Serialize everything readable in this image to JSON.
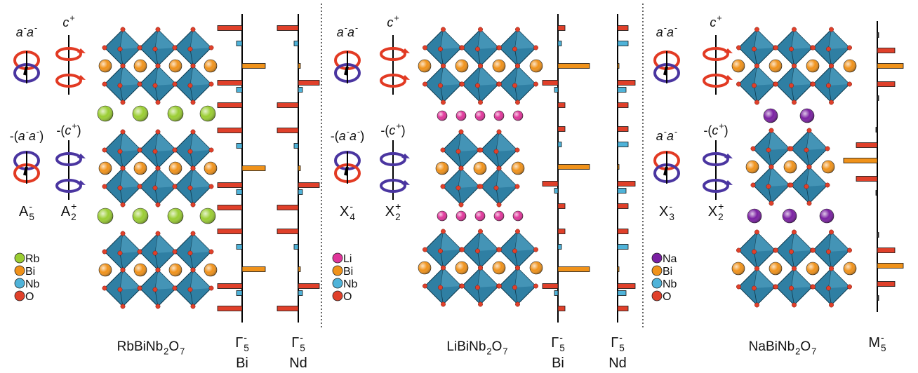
{
  "panels": [
    {
      "rotation_labels": [
        [
          {
            "t": "a",
            "sup": "-",
            "italic": true
          },
          {
            "t": "a",
            "sup": "-",
            "italic": true
          }
        ],
        [
          {
            "t": "c",
            "sup": "+",
            "italic": true
          }
        ],
        [
          {
            "t": "-("
          },
          {
            "t": "a",
            "sup": "-",
            "italic": true
          },
          {
            "t": "a",
            "sup": "-",
            "italic": true
          },
          {
            "t": ")"
          }
        ],
        [
          {
            "t": "-("
          },
          {
            "t": "c",
            "sup": "+",
            "italic": true
          },
          {
            "t": ")"
          }
        ]
      ],
      "irreps": [
        [
          {
            "t": "A",
            "sub": "5",
            "sup": "-"
          }
        ],
        [
          {
            "t": "A",
            "sub": "2",
            "sup": "+"
          }
        ]
      ],
      "legend": [
        {
          "label": "Rb",
          "color": "#9acd32"
        },
        {
          "label": "Bi",
          "color": "#f0921a"
        },
        {
          "label": "Nb",
          "color": "#4fb3d9"
        },
        {
          "label": "O",
          "color": "#e0402a"
        }
      ],
      "compound": [
        {
          "t": "RbBiNb",
          "sub": "2"
        },
        {
          "t": "O",
          "sub": "7"
        }
      ],
      "columns": [
        {
          "irrep": [
            {
              "t": "Γ",
              "sub": "5",
              "sup": "-"
            }
          ],
          "site": "Bi",
          "bars": [
            {
              "color": "#e0402a",
              "value": -35
            },
            {
              "color": "#4fb3d9",
              "value": -8
            },
            {
              "color": "#f0921a",
              "value": 33
            },
            {
              "color": "#e0402a",
              "value": -35
            },
            {
              "color": "#4fb3d9",
              "value": -8
            },
            {
              "color": "#e0402a",
              "value": -35
            },
            {
              "color": "#e0402a",
              "value": -35
            },
            {
              "color": "#4fb3d9",
              "value": -8
            },
            {
              "color": "#f0921a",
              "value": 33
            },
            {
              "color": "#e0402a",
              "value": -35
            },
            {
              "color": "#4fb3d9",
              "value": -8
            },
            {
              "color": "#e0402a",
              "value": -35
            },
            {
              "color": "#e0402a",
              "value": -35
            },
            {
              "color": "#4fb3d9",
              "value": -8
            },
            {
              "color": "#f0921a",
              "value": 33
            },
            {
              "color": "#e0402a",
              "value": -35
            },
            {
              "color": "#4fb3d9",
              "value": -8
            },
            {
              "color": "#e0402a",
              "value": -35
            }
          ]
        },
        {
          "irrep": [
            {
              "t": "Γ",
              "sub": "5",
              "sup": "-"
            }
          ],
          "site": "Nd",
          "bars": [
            {
              "color": "#e0402a",
              "value": -30
            },
            {
              "color": "#4fb3d9",
              "value": -6
            },
            {
              "color": "#f0921a",
              "value": 3
            },
            {
              "color": "#e0402a",
              "value": 30
            },
            {
              "color": "#4fb3d9",
              "value": 6
            },
            {
              "color": "#e0402a",
              "value": -30
            },
            {
              "color": "#e0402a",
              "value": -30
            },
            {
              "color": "#4fb3d9",
              "value": -6
            },
            {
              "color": "#f0921a",
              "value": 3
            },
            {
              "color": "#e0402a",
              "value": 30
            },
            {
              "color": "#4fb3d9",
              "value": 6
            },
            {
              "color": "#e0402a",
              "value": -30
            },
            {
              "color": "#e0402a",
              "value": -30
            },
            {
              "color": "#4fb3d9",
              "value": -6
            },
            {
              "color": "#f0921a",
              "value": 3
            },
            {
              "color": "#e0402a",
              "value": 30
            },
            {
              "color": "#4fb3d9",
              "value": 6
            },
            {
              "color": "#e0402a",
              "value": -30
            }
          ]
        }
      ]
    },
    {
      "rotation_labels": [
        [
          {
            "t": "a",
            "sup": "-",
            "italic": true
          },
          {
            "t": "a",
            "sup": "-",
            "italic": true
          }
        ],
        [
          {
            "t": "c",
            "sup": "+",
            "italic": true
          }
        ],
        [
          {
            "t": "-("
          },
          {
            "t": "a",
            "sup": "-",
            "italic": true
          },
          {
            "t": "a",
            "sup": "-",
            "italic": true
          },
          {
            "t": ")"
          }
        ],
        [
          {
            "t": "-("
          },
          {
            "t": "c",
            "sup": "+",
            "italic": true
          },
          {
            "t": ")"
          }
        ]
      ],
      "irreps": [
        [
          {
            "t": "X",
            "sub": "4",
            "sup": "-"
          }
        ],
        [
          {
            "t": "X",
            "sub": "2",
            "sup": "+"
          }
        ]
      ],
      "legend": [
        {
          "label": "Li",
          "color": "#e0359a"
        },
        {
          "label": "Bi",
          "color": "#f0921a"
        },
        {
          "label": "Nb",
          "color": "#4fb3d9"
        },
        {
          "label": "O",
          "color": "#e0402a"
        }
      ],
      "compound": [
        {
          "t": "LiBiNb",
          "sub": "2"
        },
        {
          "t": "O",
          "sub": "7"
        }
      ],
      "columns": [
        {
          "irrep": [
            {
              "t": "Γ",
              "sub": "5",
              "sup": "-"
            }
          ],
          "site": "Bi",
          "bars": [
            {
              "color": "#e0402a",
              "value": 10
            },
            {
              "color": "#4fb3d9",
              "value": 5
            },
            {
              "color": "#f0921a",
              "value": 45
            },
            {
              "color": "#e0402a",
              "value": -22
            },
            {
              "color": "#4fb3d9",
              "value": -5
            },
            {
              "color": "#e0402a",
              "value": 10
            },
            {
              "color": "#e0402a",
              "value": 10
            },
            {
              "color": "#4fb3d9",
              "value": 5
            },
            {
              "color": "#f0921a",
              "value": 45
            },
            {
              "color": "#e0402a",
              "value": -22
            },
            {
              "color": "#4fb3d9",
              "value": -5
            },
            {
              "color": "#e0402a",
              "value": 10
            },
            {
              "color": "#e0402a",
              "value": 10
            },
            {
              "color": "#4fb3d9",
              "value": 5
            },
            {
              "color": "#f0921a",
              "value": 45
            },
            {
              "color": "#e0402a",
              "value": -22
            },
            {
              "color": "#4fb3d9",
              "value": -5
            },
            {
              "color": "#e0402a",
              "value": 10
            }
          ]
        },
        {
          "irrep": [
            {
              "t": "Γ",
              "sub": "5",
              "sup": "-"
            }
          ],
          "site": "Nd",
          "bars": [
            {
              "color": "#e0402a",
              "value": 15
            },
            {
              "color": "#4fb3d9",
              "value": 15
            },
            {
              "color": "#f0921a",
              "value": 2
            },
            {
              "color": "#e0402a",
              "value": 25
            },
            {
              "color": "#4fb3d9",
              "value": 12
            },
            {
              "color": "#e0402a",
              "value": 15
            },
            {
              "color": "#e0402a",
              "value": 15
            },
            {
              "color": "#4fb3d9",
              "value": 15
            },
            {
              "color": "#f0921a",
              "value": 2
            },
            {
              "color": "#e0402a",
              "value": 25
            },
            {
              "color": "#4fb3d9",
              "value": 12
            },
            {
              "color": "#e0402a",
              "value": 15
            },
            {
              "color": "#e0402a",
              "value": 15
            },
            {
              "color": "#4fb3d9",
              "value": 15
            },
            {
              "color": "#f0921a",
              "value": 2
            },
            {
              "color": "#e0402a",
              "value": 25
            },
            {
              "color": "#4fb3d9",
              "value": 12
            },
            {
              "color": "#e0402a",
              "value": 15
            }
          ]
        }
      ]
    },
    {
      "rotation_labels": [
        [
          {
            "t": "a",
            "sup": "-",
            "italic": true
          },
          {
            "t": "a",
            "sup": "-",
            "italic": true
          }
        ],
        [
          {
            "t": "c",
            "sup": "+",
            "italic": true
          }
        ],
        [
          {
            "t": "a",
            "sup": "-",
            "italic": true
          },
          {
            "t": "a",
            "sup": "-",
            "italic": true
          }
        ],
        [
          {
            "t": "-("
          },
          {
            "t": "c",
            "sup": "+",
            "italic": true
          },
          {
            "t": ")"
          }
        ]
      ],
      "irreps": [
        [
          {
            "t": "X",
            "sub": "3",
            "sup": "-"
          }
        ],
        [
          {
            "t": "X",
            "sub": "2",
            "sup": "+"
          }
        ]
      ],
      "legend": [
        {
          "label": "Na",
          "color": "#7a1fa2"
        },
        {
          "label": "Bi",
          "color": "#f0921a"
        },
        {
          "label": "Nb",
          "color": "#4fb3d9"
        },
        {
          "label": "O",
          "color": "#e0402a"
        }
      ],
      "compound": [
        {
          "t": "NaBiNb",
          "sub": "2"
        },
        {
          "t": "O",
          "sub": "7"
        }
      ],
      "columns": [
        {
          "irrep": [
            {
              "t": "M",
              "sub": "5",
              "sup": "-"
            }
          ],
          "bars": [
            {
              "color": "#333333",
              "value": 2
            },
            {
              "color": "#e0402a",
              "value": 25
            },
            {
              "color": "#f0921a",
              "value": 37
            },
            {
              "color": "#e0402a",
              "value": 25
            },
            {
              "color": "#333333",
              "value": 2
            },
            {
              "color": "#333333",
              "value": -2
            },
            {
              "color": "#e0402a",
              "value": -30
            },
            {
              "color": "#f0921a",
              "value": -48
            },
            {
              "color": "#e0402a",
              "value": -30
            },
            {
              "color": "#333333",
              "value": -2
            },
            {
              "color": "#333333",
              "value": 2
            },
            {
              "color": "#e0402a",
              "value": 25
            },
            {
              "color": "#f0921a",
              "value": 37
            },
            {
              "color": "#e0402a",
              "value": 25
            },
            {
              "color": "#333333",
              "value": 2
            }
          ]
        }
      ]
    }
  ]
}
